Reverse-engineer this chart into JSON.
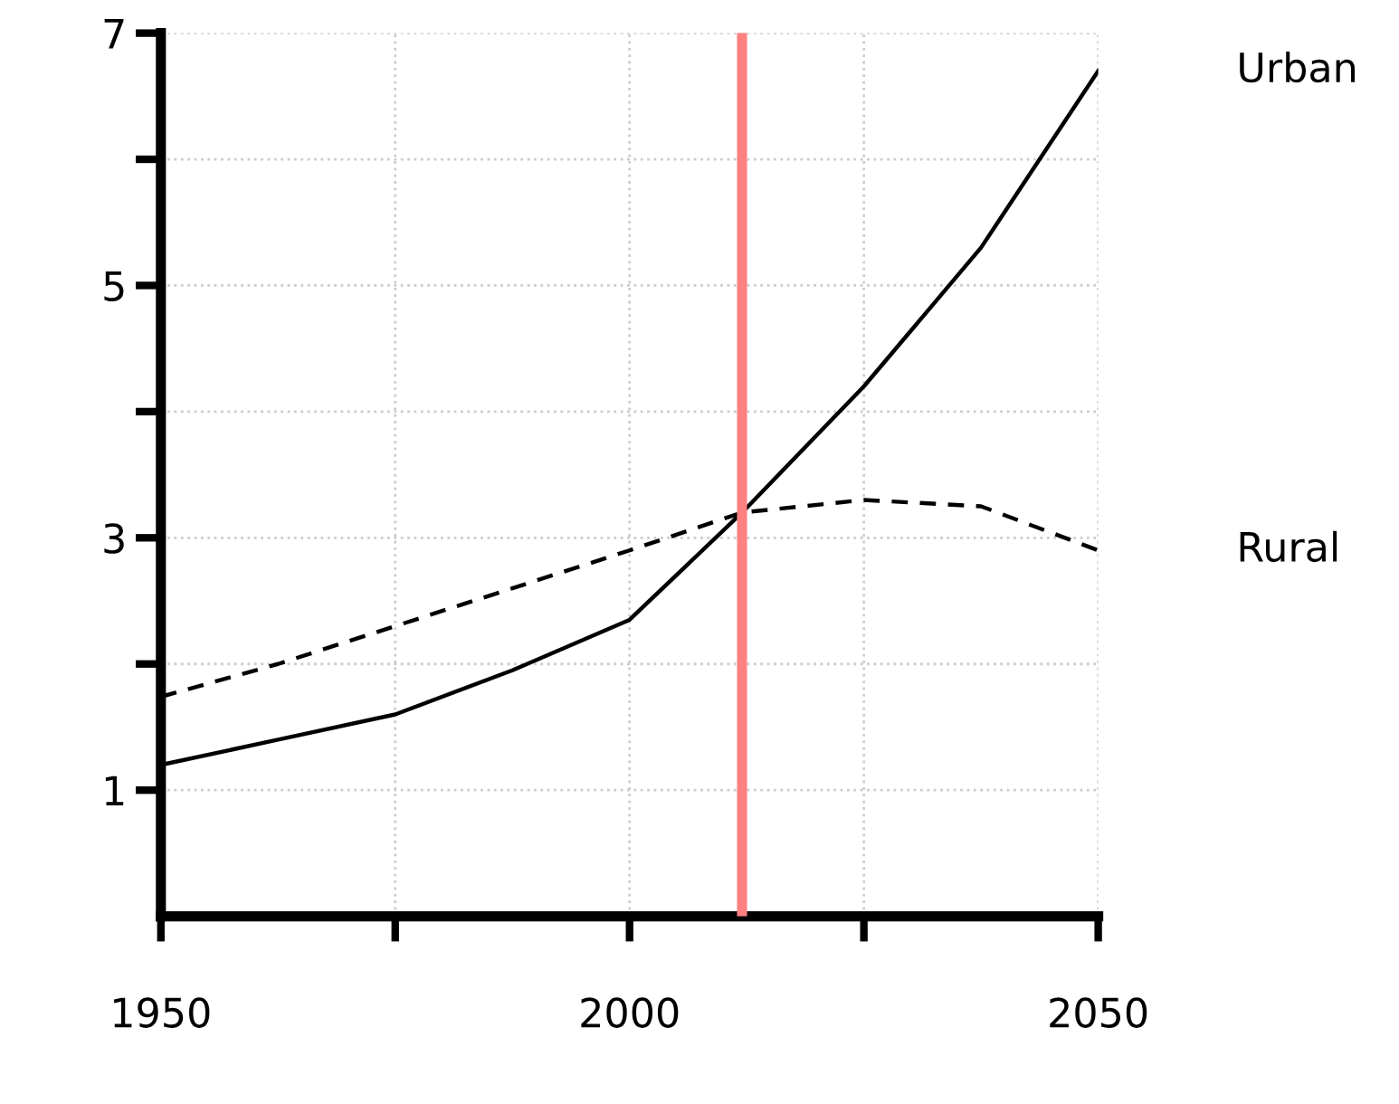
{
  "chart_data": {
    "type": "line",
    "x": [
      1950,
      1962.5,
      1975,
      1987.5,
      2000,
      2012,
      2025,
      2037.5,
      2050
    ],
    "series": [
      {
        "name": "Urban",
        "color": "#000000",
        "line_style": "solid",
        "values": [
          1.2,
          1.4,
          1.6,
          1.95,
          2.35,
          3.2,
          4.2,
          5.3,
          6.7
        ]
      },
      {
        "name": "Rural",
        "color": "#000000",
        "line_style": "dashed",
        "values": [
          1.74,
          2.0,
          2.3,
          2.6,
          2.9,
          3.2,
          3.3,
          3.25,
          2.9
        ]
      }
    ],
    "xlim": [
      1950,
      2050
    ],
    "xticks": [
      1950,
      {
        "value": 1975,
        "label": null
      },
      2000,
      {
        "value": 2025,
        "label": null
      },
      2050
    ],
    "ylim": [
      0,
      7
    ],
    "yticks": [
      1,
      {
        "value": 2,
        "label": null
      },
      3,
      {
        "value": 4,
        "label": null
      },
      5,
      {
        "value": 6,
        "label": null
      },
      7
    ],
    "ref_lines": [
      {
        "axis": "x",
        "value": 2012,
        "color": "#ff8080"
      }
    ],
    "grid": true,
    "legend": false,
    "marker": "none"
  }
}
